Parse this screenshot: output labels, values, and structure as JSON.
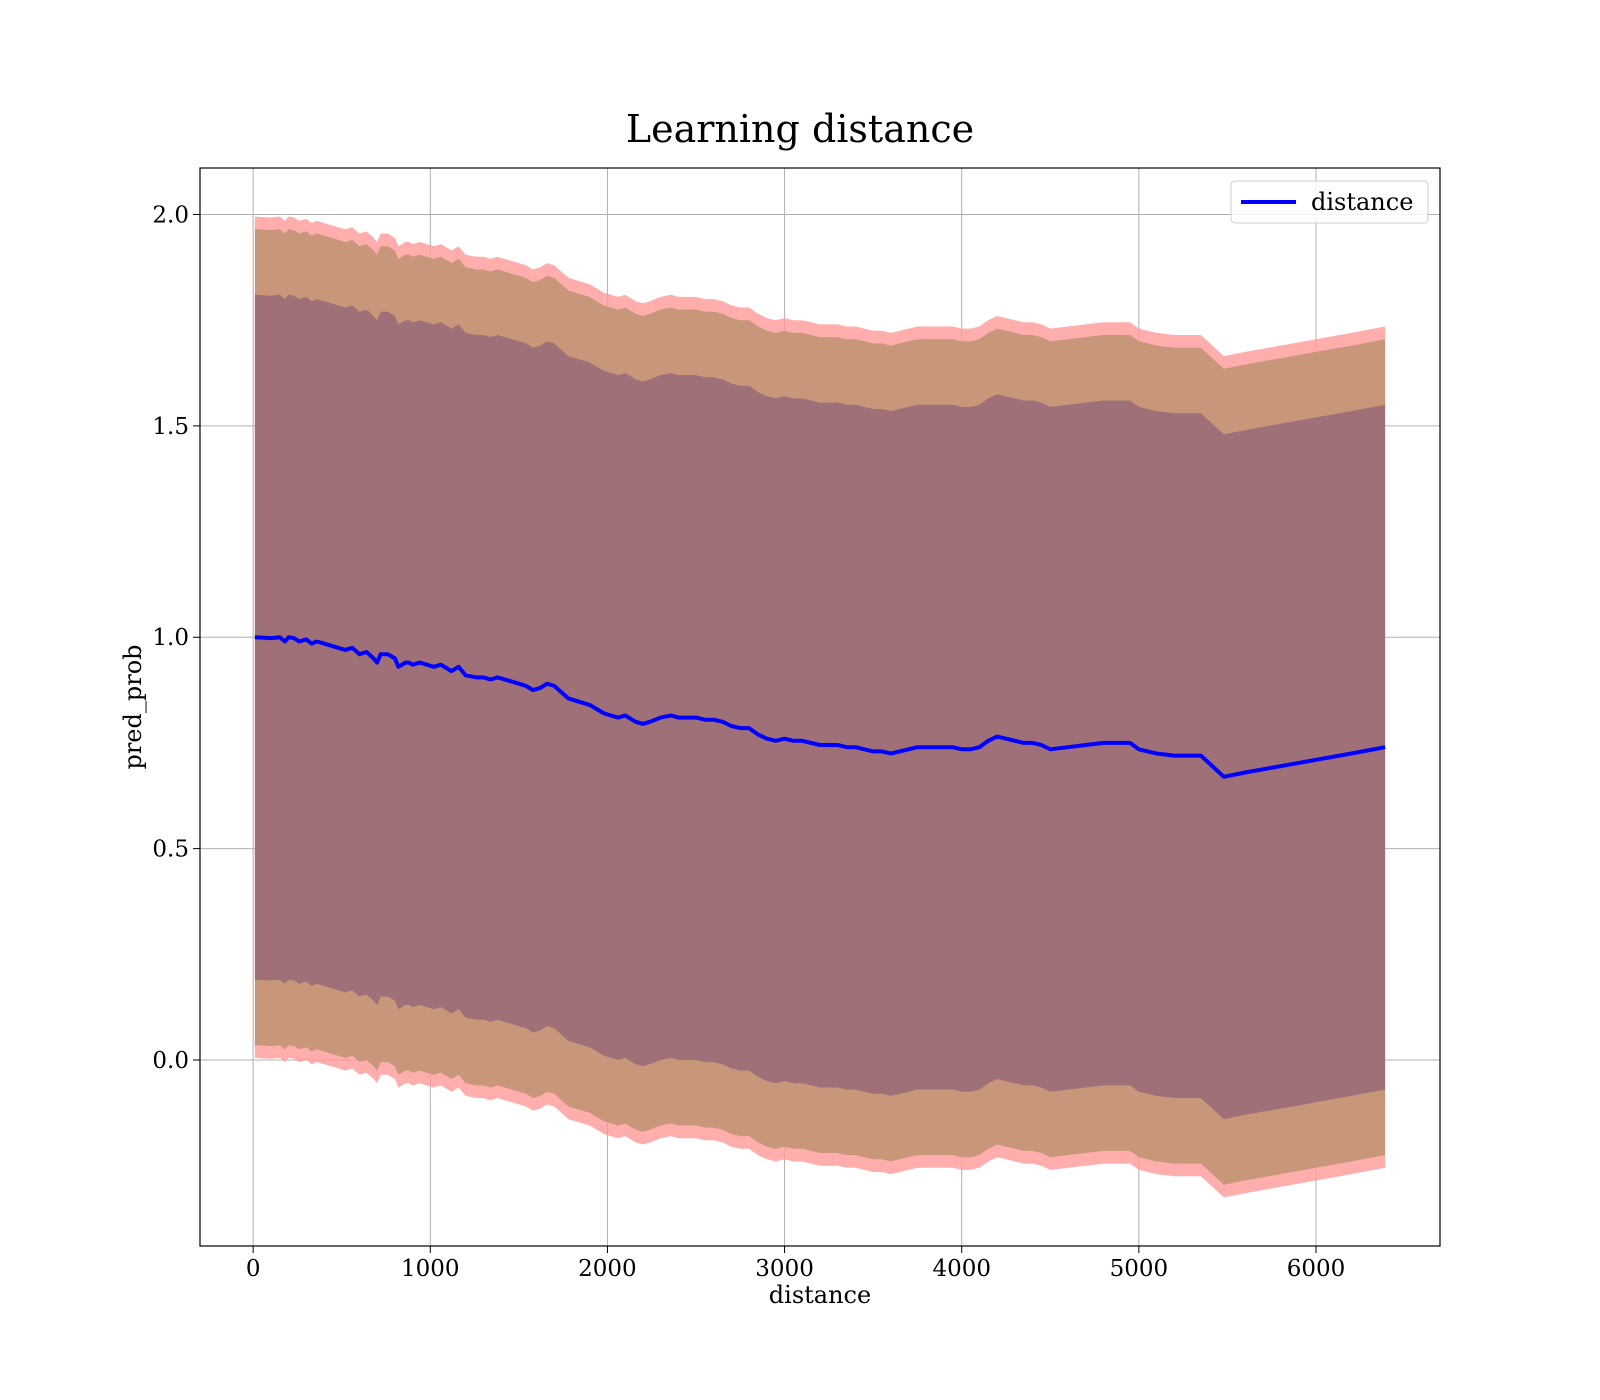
{
  "chart_data": {
    "type": "line",
    "title": "Learning distance",
    "xlabel": "distance",
    "ylabel": "pred_prob",
    "xlim": [
      -300,
      6700
    ],
    "ylim": [
      -0.44,
      2.11
    ],
    "xticks": [
      0,
      1000,
      2000,
      3000,
      4000,
      5000,
      6000
    ],
    "yticks": [
      0.0,
      0.5,
      1.0,
      1.5,
      2.0
    ],
    "xtick_labels": [
      "0",
      "1000",
      "2000",
      "3000",
      "4000",
      "5000",
      "6000"
    ],
    "ytick_labels": [
      "0.0",
      "0.5",
      "1.0",
      "1.5",
      "2.0"
    ],
    "grid": true,
    "legend": {
      "position": "top-right",
      "entries": [
        "distance"
      ]
    },
    "colors": {
      "line": "#0000ff",
      "outer_band": "#ff9999",
      "middle_band": "#c8977a",
      "inner_band": "#a07078"
    },
    "series": [
      {
        "name": "distance",
        "x": [
          10,
          100,
          150,
          180,
          200,
          230,
          260,
          300,
          330,
          360,
          400,
          440,
          480,
          520,
          560,
          600,
          640,
          680,
          700,
          720,
          760,
          800,
          820,
          860,
          880,
          900,
          940,
          980,
          1020,
          1060,
          1100,
          1120,
          1160,
          1200,
          1260,
          1300,
          1340,
          1380,
          1420,
          1460,
          1500,
          1540,
          1580,
          1620,
          1660,
          1700,
          1740,
          1780,
          1820,
          1860,
          1900,
          1940,
          1980,
          2020,
          2060,
          2100,
          2160,
          2200,
          2240,
          2300,
          2360,
          2400,
          2450,
          2500,
          2550,
          2600,
          2650,
          2700,
          2750,
          2800,
          2850,
          2900,
          2950,
          3000,
          3050,
          3100,
          3150,
          3200,
          3250,
          3300,
          3350,
          3400,
          3450,
          3500,
          3550,
          3600,
          3650,
          3700,
          3750,
          3800,
          3850,
          3900,
          3950,
          4000,
          4050,
          4100,
          4150,
          4200,
          4250,
          4300,
          4350,
          4400,
          4450,
          4500,
          4600,
          4700,
          4800,
          4950,
          5000,
          5050,
          5100,
          5200,
          5350,
          5480,
          5600,
          5800,
          6000,
          6200,
          6390
        ],
        "values": [
          1.0,
          0.998,
          1.0,
          0.99,
          1.0,
          0.998,
          0.99,
          0.995,
          0.985,
          0.99,
          0.985,
          0.98,
          0.975,
          0.97,
          0.975,
          0.96,
          0.965,
          0.95,
          0.94,
          0.96,
          0.96,
          0.95,
          0.93,
          0.94,
          0.94,
          0.935,
          0.94,
          0.935,
          0.93,
          0.935,
          0.925,
          0.92,
          0.93,
          0.91,
          0.905,
          0.905,
          0.9,
          0.905,
          0.9,
          0.895,
          0.89,
          0.885,
          0.875,
          0.88,
          0.89,
          0.885,
          0.87,
          0.855,
          0.85,
          0.845,
          0.84,
          0.83,
          0.82,
          0.815,
          0.81,
          0.815,
          0.8,
          0.795,
          0.8,
          0.81,
          0.815,
          0.81,
          0.81,
          0.81,
          0.805,
          0.805,
          0.8,
          0.79,
          0.785,
          0.785,
          0.77,
          0.76,
          0.755,
          0.76,
          0.755,
          0.755,
          0.75,
          0.745,
          0.745,
          0.745,
          0.74,
          0.74,
          0.735,
          0.73,
          0.73,
          0.725,
          0.73,
          0.735,
          0.74,
          0.74,
          0.74,
          0.74,
          0.74,
          0.735,
          0.735,
          0.74,
          0.755,
          0.765,
          0.76,
          0.755,
          0.75,
          0.75,
          0.745,
          0.735,
          0.74,
          0.745,
          0.75,
          0.75,
          0.735,
          0.73,
          0.725,
          0.72,
          0.72,
          0.67,
          0.68,
          0.695,
          0.71,
          0.725,
          0.74
        ],
        "bands": [
          {
            "offset_low": -0.995,
            "offset_high": 0.995
          },
          {
            "offset_low": -0.965,
            "offset_high": 0.965
          },
          {
            "offset_low": -0.81,
            "offset_high": 0.81
          }
        ]
      }
    ]
  }
}
